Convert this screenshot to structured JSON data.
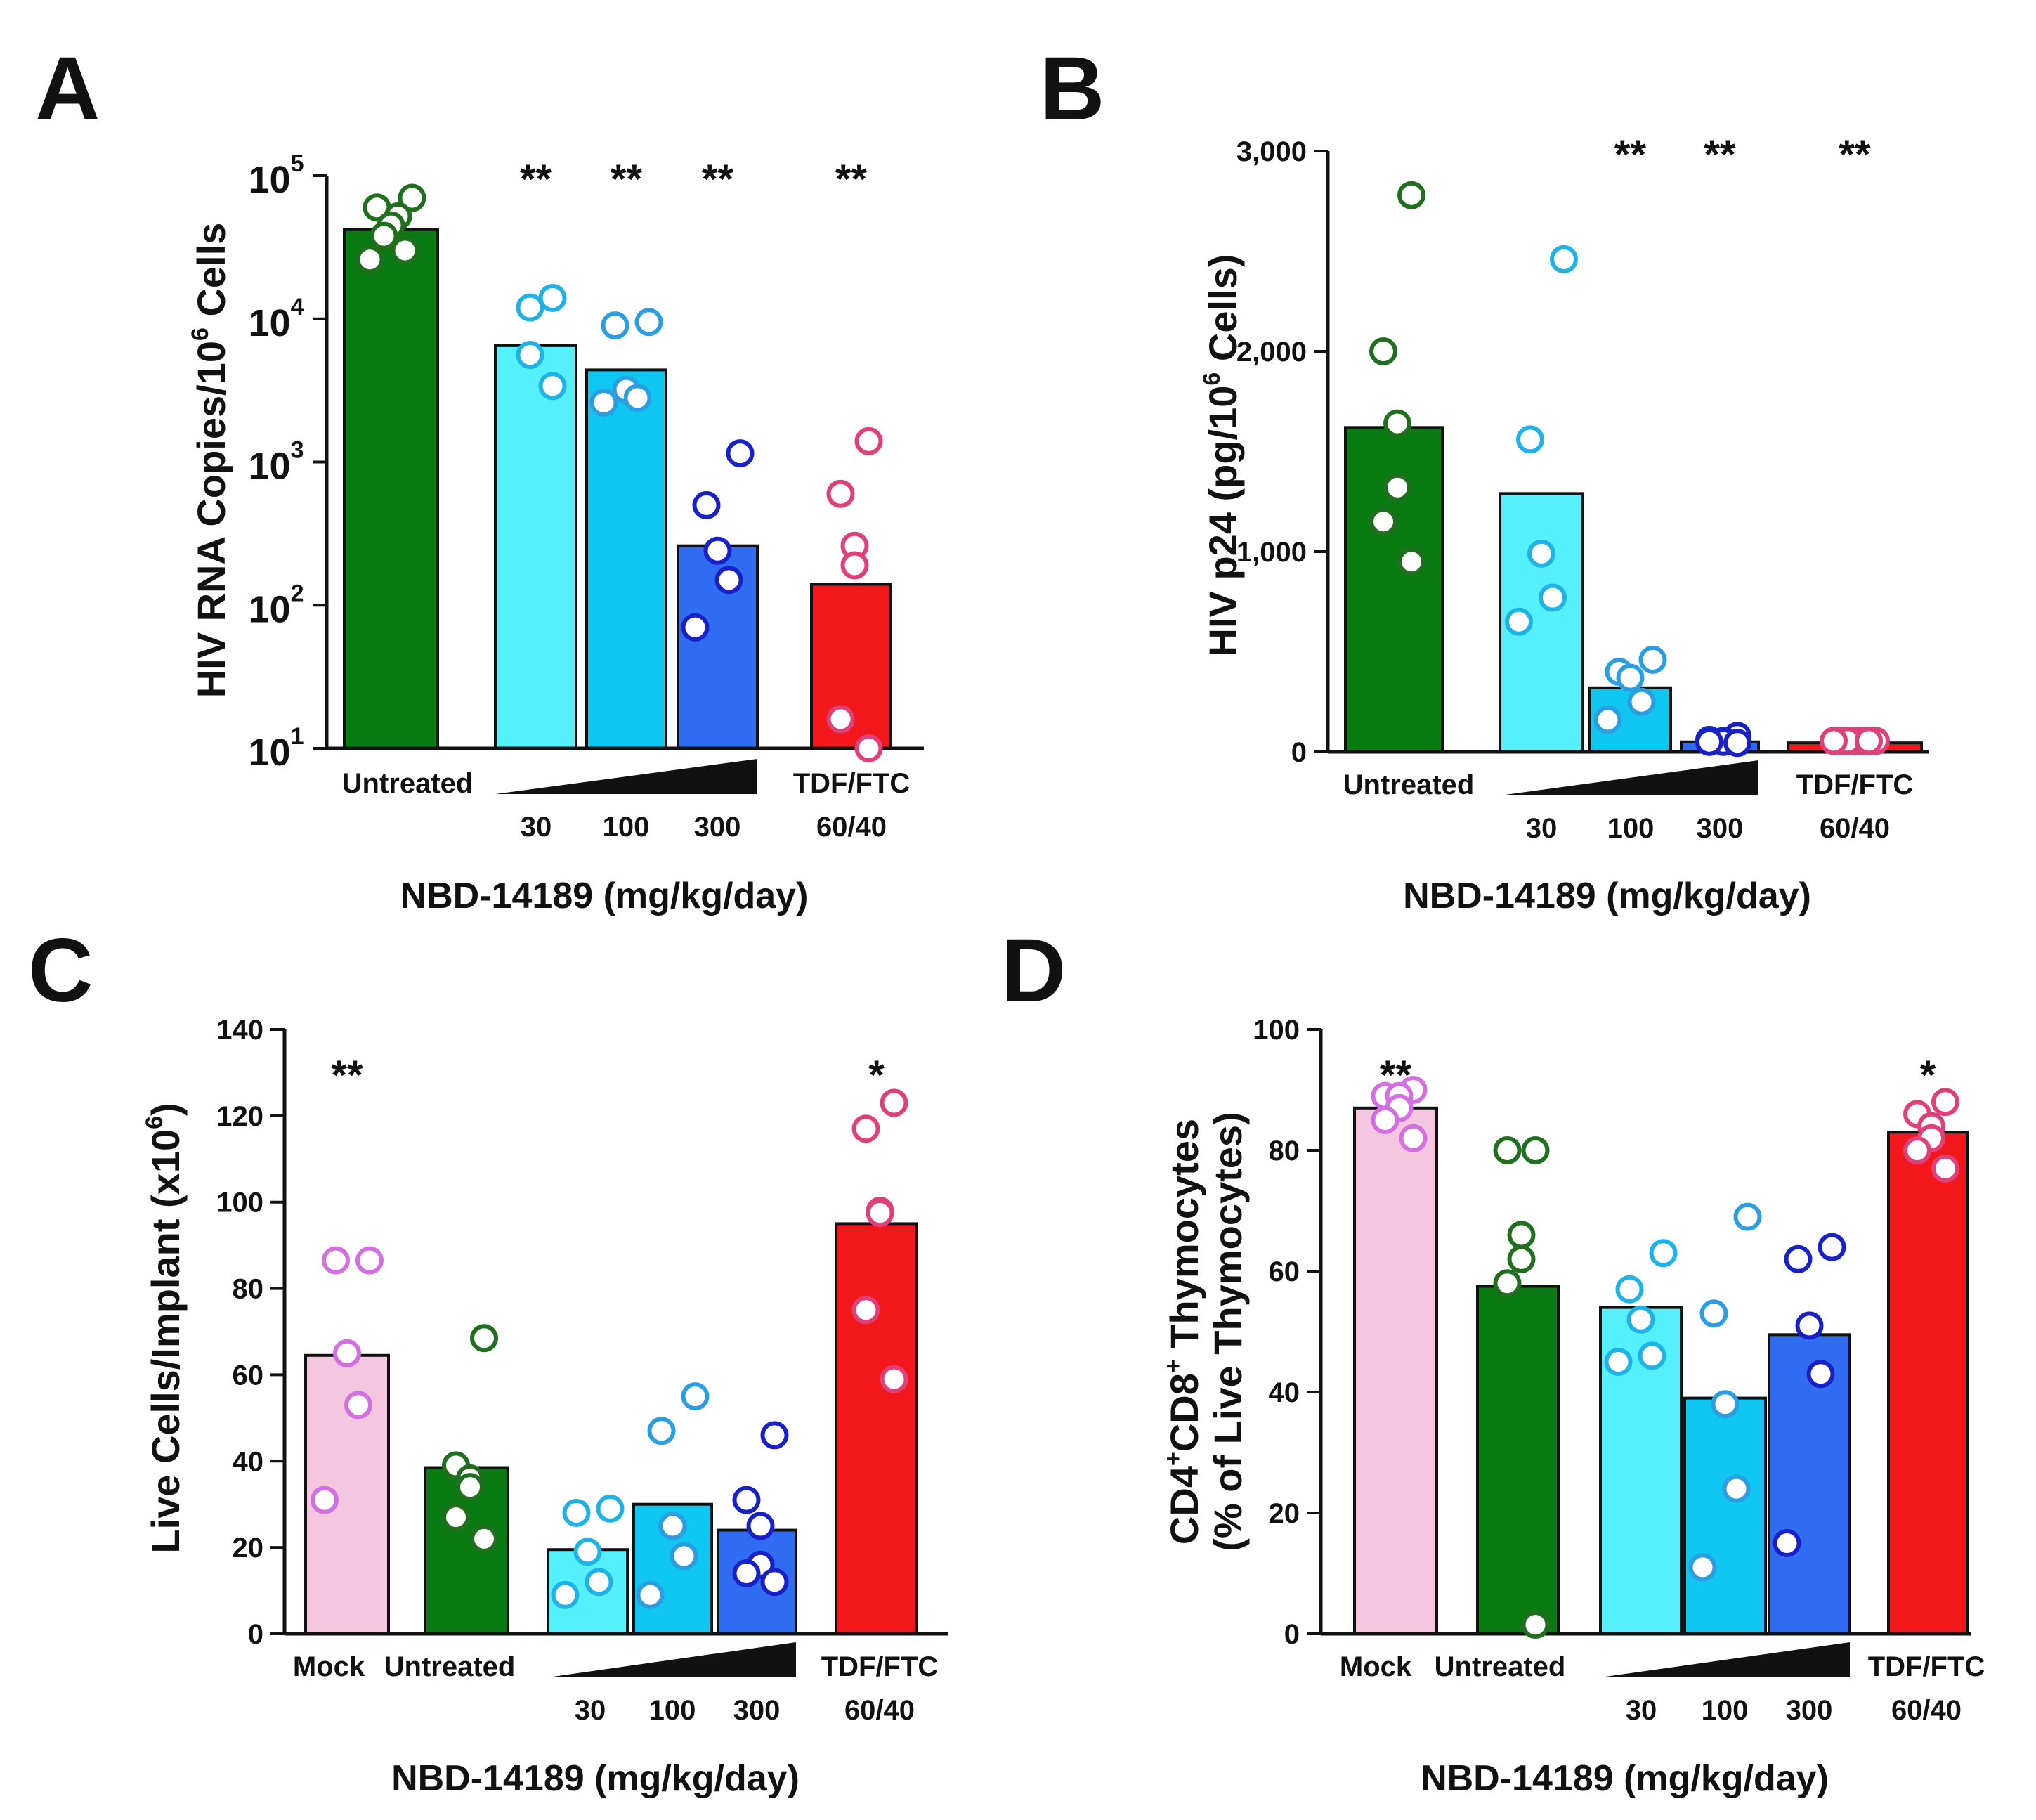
{
  "chart_data": [
    {
      "panel": "A",
      "type": "bar",
      "scale": "log",
      "ylim": [
        10,
        100000
      ],
      "yticks": [
        {
          "value": 100000,
          "base": "10",
          "exp": "5"
        },
        {
          "value": 10000,
          "base": "10",
          "exp": "4"
        },
        {
          "value": 1000,
          "base": "10",
          "exp": "3"
        },
        {
          "value": 100,
          "base": "10",
          "exp": "2"
        },
        {
          "value": 10,
          "base": "10",
          "exp": "1"
        }
      ],
      "ylabel": {
        "main": "HIV RNA Copies/10",
        "sup": "6",
        "tail": " Cells"
      },
      "xlabel": "NBD-14189 (mg/kg/day)",
      "bars": [
        {
          "group": "Untreated",
          "value": 42000,
          "color": "#0a7a12",
          "points": [
            70000,
            60000,
            52000,
            45000,
            38000,
            30000,
            26000
          ],
          "sig": ""
        },
        {
          "group": "30",
          "value": 6500,
          "color": "#55f0fb",
          "points": [
            14000,
            12000,
            5600,
            3400
          ],
          "sig": "**"
        },
        {
          "group": "100",
          "value": 4400,
          "color": "#0fc6f0",
          "points": [
            9500,
            9000,
            3200,
            2800,
            2600
          ],
          "sig": "**"
        },
        {
          "group": "300",
          "value": 260,
          "color": "#2f6cf2",
          "points": [
            1150,
            500,
            240,
            150,
            70
          ],
          "sig": "**"
        },
        {
          "group": "TDF/FTC 60/40",
          "value": 140,
          "color": "#f2171b",
          "points": [
            1400,
            600,
            260,
            190,
            16,
            10
          ],
          "sig": "**"
        }
      ],
      "category_labels": {
        "untreated": "Untreated",
        "doses": [
          "30",
          "100",
          "300"
        ],
        "tdf1": "TDF/FTC",
        "tdf2": "60/40"
      }
    },
    {
      "panel": "B",
      "type": "bar",
      "scale": "linear",
      "ylim": [
        0,
        3000
      ],
      "yticks": [
        {
          "value": 3000,
          "label": "3,000"
        },
        {
          "value": 2000,
          "label": "2,000"
        },
        {
          "value": 1000,
          "label": "1,000"
        },
        {
          "value": 0,
          "label": "0"
        }
      ],
      "ylabel": {
        "main": "HIV p24 (pg/10",
        "sup": "6",
        "tail": " Cells)"
      },
      "xlabel": "NBD-14189 (mg/kg/day)",
      "bars": [
        {
          "group": "Untreated",
          "value": 1620,
          "color": "#0a7a12",
          "points": [
            2780,
            2000,
            1640,
            1320,
            1150,
            950
          ],
          "sig": ""
        },
        {
          "group": "30",
          "value": 1290,
          "color": "#55f0fb",
          "points": [
            2460,
            1560,
            990,
            770,
            650
          ],
          "sig": ""
        },
        {
          "group": "100",
          "value": 320,
          "color": "#0fc6f0",
          "points": [
            460,
            400,
            370,
            250,
            160
          ],
          "sig": "**"
        },
        {
          "group": "300",
          "value": 50,
          "color": "#2f6cf2",
          "points": [
            80,
            60,
            55,
            50,
            50,
            45
          ],
          "sig": "**"
        },
        {
          "group": "TDF/FTC 60/40",
          "value": 45,
          "color": "#f2171b",
          "points": [
            55,
            55,
            55,
            55,
            55,
            55,
            55
          ],
          "sig": "**"
        }
      ],
      "category_labels": {
        "untreated": "Untreated",
        "doses": [
          "30",
          "100",
          "300"
        ],
        "tdf1": "TDF/FTC",
        "tdf2": "60/40"
      }
    },
    {
      "panel": "C",
      "type": "bar",
      "scale": "linear",
      "ylim": [
        0,
        140
      ],
      "yticks": [
        {
          "value": 140,
          "label": "140"
        },
        {
          "value": 120,
          "label": "120"
        },
        {
          "value": 100,
          "label": "100"
        },
        {
          "value": 80,
          "label": "80"
        },
        {
          "value": 60,
          "label": "60"
        },
        {
          "value": 40,
          "label": "40"
        },
        {
          "value": 20,
          "label": "20"
        },
        {
          "value": 0,
          "label": "0"
        }
      ],
      "ylabel": {
        "main": "Live Cells/Implant (x10",
        "sup": "6",
        "tail": ")"
      },
      "xlabel": "NBD-14189 (mg/kg/day)",
      "bars": [
        {
          "group": "Mock",
          "value": 64.5,
          "color": "#f4c6df",
          "points": [
            86.5,
            86.5,
            65,
            53,
            31
          ],
          "sig": "**"
        },
        {
          "group": "Untreated",
          "value": 38.5,
          "color": "#0a7a12",
          "points": [
            68.5,
            39,
            36,
            34,
            27,
            22
          ],
          "sig": ""
        },
        {
          "group": "30",
          "value": 19.5,
          "color": "#55f0fb",
          "points": [
            29,
            28,
            19,
            12,
            9
          ],
          "sig": ""
        },
        {
          "group": "100",
          "value": 30,
          "color": "#0fc6f0",
          "points": [
            55,
            47,
            25,
            18,
            9
          ],
          "sig": ""
        },
        {
          "group": "300",
          "value": 24,
          "color": "#2f6cf2",
          "points": [
            46,
            31,
            25,
            16,
            14,
            12
          ],
          "sig": ""
        },
        {
          "group": "TDF/FTC 60/40",
          "value": 95,
          "color": "#f2171b",
          "points": [
            123,
            117,
            98,
            97.5,
            75,
            59
          ],
          "sig": "*"
        }
      ],
      "category_labels": {
        "mock": "Mock",
        "untreated": "Untreated",
        "doses": [
          "30",
          "100",
          "300"
        ],
        "tdf1": "TDF/FTC",
        "tdf2": "60/40"
      }
    },
    {
      "panel": "D",
      "type": "bar",
      "scale": "linear",
      "ylim": [
        0,
        100
      ],
      "yticks": [
        {
          "value": 100,
          "label": "100"
        },
        {
          "value": 80,
          "label": "80"
        },
        {
          "value": 60,
          "label": "60"
        },
        {
          "value": 40,
          "label": "40"
        },
        {
          "value": 20,
          "label": "20"
        },
        {
          "value": 0,
          "label": "0"
        }
      ],
      "ylabel": {
        "main": "CD4",
        "sup": "+",
        "mid": "CD8",
        "sup2": "+",
        "tail": " Thymocytes",
        "line2": "(% of Live Thymocytes)"
      },
      "xlabel": "NBD-14189 (mg/kg/day)",
      "bars": [
        {
          "group": "Mock",
          "value": 87,
          "color": "#f4c6df",
          "points": [
            90,
            89,
            89,
            87,
            85,
            82
          ],
          "sig": "**"
        },
        {
          "group": "Untreated",
          "value": 57.5,
          "color": "#0a7a12",
          "points": [
            80,
            80,
            66,
            62,
            58,
            1.5
          ],
          "sig": ""
        },
        {
          "group": "30",
          "value": 54,
          "color": "#55f0fb",
          "points": [
            63,
            57,
            52,
            46,
            45
          ],
          "sig": ""
        },
        {
          "group": "100",
          "value": 39,
          "color": "#0fc6f0",
          "points": [
            69,
            53,
            38,
            24,
            11
          ],
          "sig": ""
        },
        {
          "group": "300",
          "value": 49.5,
          "color": "#2f6cf2",
          "points": [
            64,
            62,
            51,
            43,
            15
          ],
          "sig": ""
        },
        {
          "group": "TDF/FTC 60/40",
          "value": 83,
          "color": "#f2171b",
          "points": [
            88,
            86,
            84,
            82,
            80,
            77
          ],
          "sig": "*"
        }
      ],
      "category_labels": {
        "mock": "Mock",
        "untreated": "Untreated",
        "doses": [
          "30",
          "100",
          "300"
        ],
        "tdf1": "TDF/FTC",
        "tdf2": "60/40"
      }
    }
  ],
  "dot_colors": {
    "#0a7a12": "#1f6f1f",
    "#55f0fb": "#1fb2e8",
    "#0fc6f0": "#2a9ee0",
    "#2f6cf2": "#1820c8",
    "#f2171b": "#e0407a",
    "#f4c6df": "#d36fe0"
  }
}
